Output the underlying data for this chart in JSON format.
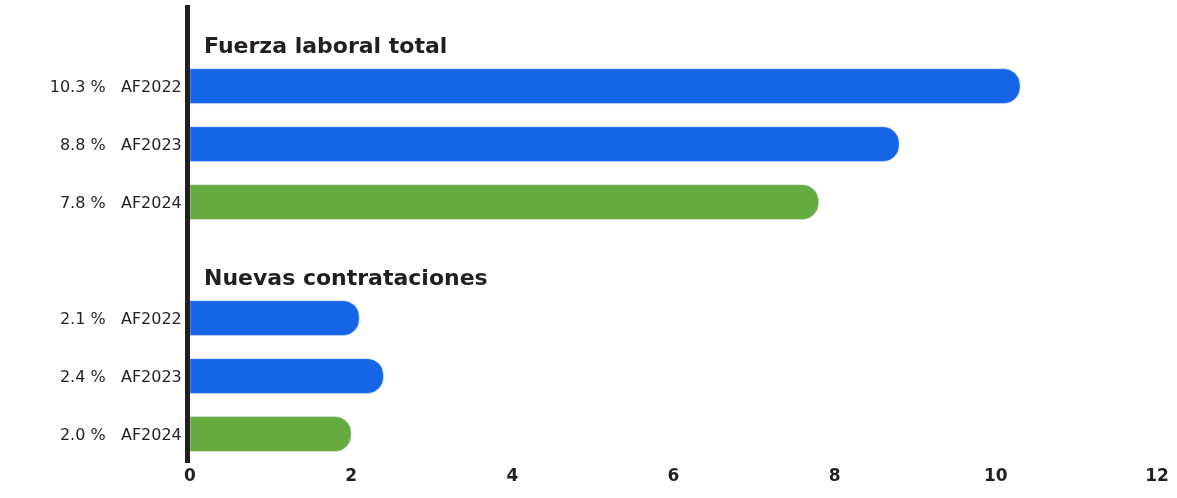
{
  "chart_data": {
    "type": "bar",
    "orientation": "horizontal",
    "categories": [
      null,
      "10.3 %   AF2022",
      "8.8 %   AF2023",
      "7.8 %   AF2024",
      null,
      "2.1 %   AF2022",
      "2.4 %   AF2023",
      "2.0 %   AF2024"
    ],
    "values": [
      null,
      10.3,
      8.8,
      7.8,
      null,
      2.1,
      2.4,
      2.0
    ],
    "colors": [
      "#1565e6",
      "#1565e6",
      "#1565e6",
      "#66ab3f",
      "#1565e6",
      "#1565e6",
      "#1565e6",
      "#66ab3f"
    ],
    "annotations": [
      "Fuerza laboral total",
      "Nuevas contrataciones"
    ],
    "xlim": [
      0,
      12
    ],
    "xticks": [
      0,
      2,
      4,
      6,
      8,
      10,
      12
    ],
    "legend": false
  }
}
